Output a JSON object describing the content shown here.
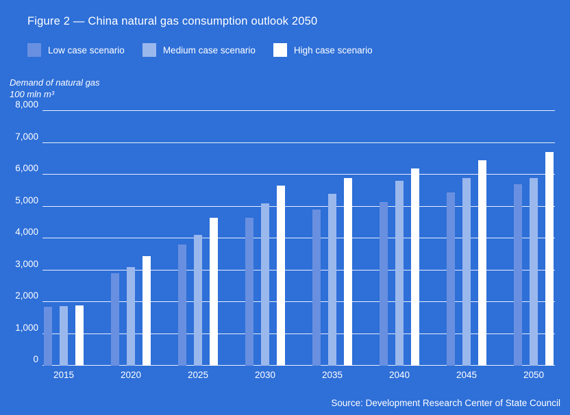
{
  "title": "Figure 2 — China natural gas consumption outlook 2050",
  "axis_title": {
    "line1": "Demand of natural gas",
    "line2": "100 mln m³"
  },
  "source": "Source: Development Research Center of State Council",
  "colors": {
    "background": "#2e6fd8",
    "low": "#6990e0",
    "medium": "#9bb8ed",
    "high": "#ffffff",
    "gridline": "rgba(255,255,255,0.9)",
    "text": "#ffffff"
  },
  "legend": {
    "items": [
      {
        "label": "Low case scenario",
        "color": "#6990e0"
      },
      {
        "label": "Medium case scenario",
        "color": "#9bb8ed"
      },
      {
        "label": "High case scenario",
        "color": "#ffffff"
      }
    ]
  },
  "chart_data": {
    "type": "bar",
    "title": "Figure 2 — China natural gas consumption outlook 2050",
    "xlabel": "",
    "ylabel": "Demand of natural gas, 100 mln m³",
    "categories": [
      "2015",
      "2020",
      "2025",
      "2030",
      "2035",
      "2040",
      "2045",
      "2050"
    ],
    "series": [
      {
        "name": "Low case scenario",
        "color": "#6990e0",
        "values": [
          1850,
          2900,
          3800,
          4650,
          4900,
          5150,
          5450,
          5700
        ]
      },
      {
        "name": "Medium case scenario",
        "color": "#9bb8ed",
        "values": [
          1870,
          3100,
          4100,
          5100,
          5400,
          5800,
          5900,
          5900
        ]
      },
      {
        "name": "High case scenario",
        "color": "#ffffff",
        "values": [
          1900,
          3450,
          4650,
          5650,
          5900,
          6200,
          6450,
          6700
        ]
      }
    ],
    "ylim": [
      0,
      8000
    ],
    "yticks": [
      0,
      1000,
      2000,
      3000,
      4000,
      5000,
      6000,
      7000,
      8000
    ],
    "ytick_labels": [
      "0",
      "1,000",
      "2,000",
      "3,000",
      "4,000",
      "5,000",
      "6,000",
      "7,000",
      "8,000"
    ],
    "grid": "horizontal",
    "legend_position": "top-left"
  }
}
